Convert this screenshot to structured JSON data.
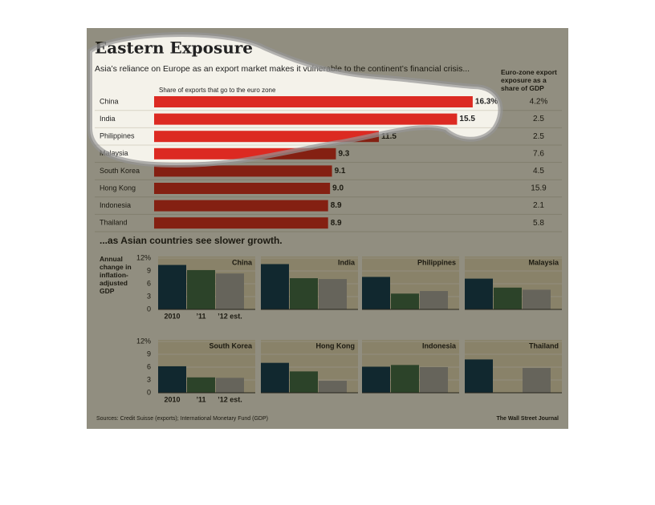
{
  "chart_data": [
    {
      "type": "hbar",
      "title": "Eastern Exposure",
      "subtitle": "Asia’s reliance on Europe as an export market makes it vulnerable to the continent’s financial crisis...",
      "axis_label": "Share of exports that go to the euro zone",
      "categories": [
        "China",
        "India",
        "Philippines",
        "Malaysia",
        "South Korea",
        "Hong Kong",
        "Indonesia",
        "Thailand"
      ],
      "values": [
        16.3,
        15.5,
        11.5,
        9.3,
        9.1,
        9.0,
        8.9,
        8.9
      ],
      "value_labels": [
        "16.3%",
        "15.5",
        "11.5",
        "9.3",
        "9.1",
        "9.0",
        "8.9",
        "8.9"
      ],
      "color": "#dc2a22",
      "table_header": "Euro-zone export exposure as a share of GDP",
      "table_values": [
        4.2,
        2.5,
        2.5,
        7.6,
        4.5,
        15.9,
        2.1,
        5.8
      ],
      "table_labels": [
        "4.2%",
        "2.5",
        "2.5",
        "7.6",
        "4.5",
        "15.9",
        "2.1",
        "5.8"
      ]
    },
    {
      "type": "bar",
      "section_title": "...as Asian countries see slower growth.",
      "y_label": "Annual change in inflation-adjusted GDP",
      "title": "China",
      "categories": [
        "2010",
        "’11",
        "’12 est."
      ],
      "values": [
        10.4,
        9.2,
        8.4
      ],
      "colors": [
        "#0c3a56",
        "#3c6a4c",
        "#a6a6a6"
      ],
      "ylim": [
        0,
        12
      ],
      "yticks": [
        {
          "value": 12,
          "label": "12%"
        },
        9,
        6,
        3,
        0
      ]
    },
    {
      "type": "bar",
      "title": "India",
      "values": [
        10.6,
        7.3,
        7.1
      ],
      "colors": [
        "#0c3a56",
        "#3c6a4c",
        "#a6a6a6"
      ],
      "ylim": [
        0,
        12
      ]
    },
    {
      "type": "bar",
      "title": "Philippines",
      "values": [
        7.6,
        3.7,
        4.3
      ],
      "colors": [
        "#0c3a56",
        "#3c6a4c",
        "#a6a6a6"
      ],
      "ylim": [
        0,
        12
      ]
    },
    {
      "type": "bar",
      "title": "Malaysia",
      "values": [
        7.2,
        5.1,
        4.6
      ],
      "colors": [
        "#0c3a56",
        "#3c6a4c",
        "#a6a6a6"
      ],
      "ylim": [
        0,
        12
      ]
    },
    {
      "type": "bar",
      "title": "South Korea",
      "categories": [
        "2010",
        "’11",
        "’12 est."
      ],
      "values": [
        6.2,
        3.6,
        3.5
      ],
      "colors": [
        "#0c3a56",
        "#3c6a4c",
        "#a6a6a6"
      ],
      "ylim": [
        0,
        12
      ],
      "yticks": [
        {
          "value": 12,
          "label": "12%"
        },
        9,
        6,
        3,
        0
      ]
    },
    {
      "type": "bar",
      "title": "Hong Kong",
      "values": [
        7.0,
        5.0,
        2.8
      ],
      "colors": [
        "#0c3a56",
        "#3c6a4c",
        "#a6a6a6"
      ],
      "ylim": [
        0,
        12
      ]
    },
    {
      "type": "bar",
      "title": "Indonesia",
      "values": [
        6.1,
        6.5,
        6.0
      ],
      "colors": [
        "#0c3a56",
        "#3c6a4c",
        "#a6a6a6"
      ],
      "ylim": [
        0,
        12
      ]
    },
    {
      "type": "bar",
      "title": "Thailand",
      "values": [
        7.8,
        0.1,
        5.8
      ],
      "colors": [
        "#0c3a56",
        "#3c6a4c",
        "#a6a6a6"
      ],
      "ylim": [
        0,
        12
      ]
    }
  ],
  "footer": {
    "source": "Sources: Credit Suisse (exports); International Monetary Fund (GDP)",
    "credit": "The Wall Street Journal"
  }
}
